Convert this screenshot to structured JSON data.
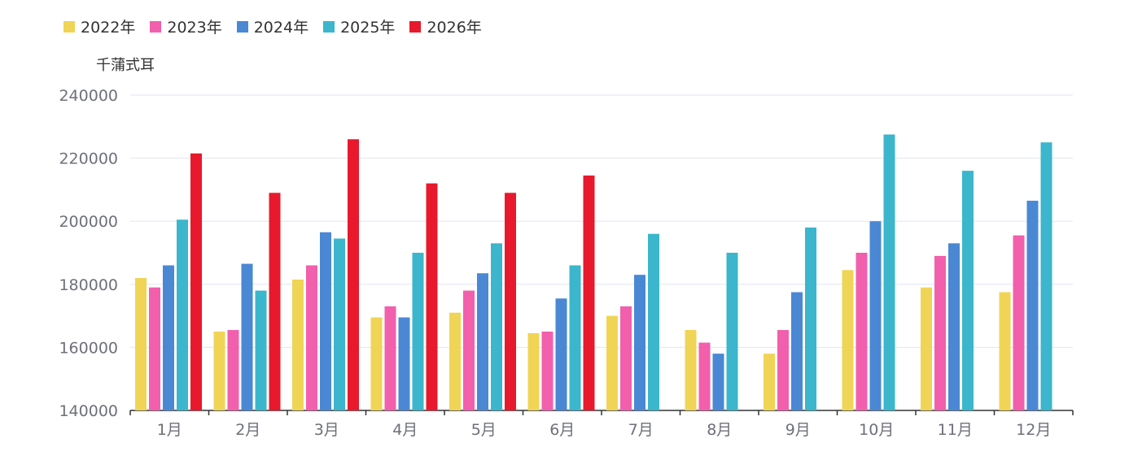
{
  "chart_data": {
    "type": "bar",
    "ylabel": "千蒲式耳",
    "categories": [
      "1月",
      "2月",
      "3月",
      "4月",
      "5月",
      "6月",
      "7月",
      "8月",
      "9月",
      "10月",
      "11月",
      "12月"
    ],
    "ylim": [
      140000,
      240000
    ],
    "yticks": [
      140000,
      160000,
      180000,
      200000,
      220000,
      240000
    ],
    "grid": true,
    "legend_position": "top-left",
    "series": [
      {
        "name": "2022年",
        "color": "#f0d456",
        "values": [
          182000,
          165000,
          181500,
          169500,
          171000,
          164500,
          170000,
          165500,
          158000,
          184500,
          179000,
          177500
        ]
      },
      {
        "name": "2023年",
        "color": "#f25fac",
        "values": [
          179000,
          165500,
          186000,
          173000,
          178000,
          165000,
          173000,
          161500,
          165500,
          190000,
          189000,
          195500
        ]
      },
      {
        "name": "2024年",
        "color": "#4a88d4",
        "values": [
          186000,
          186500,
          196500,
          169500,
          183500,
          175500,
          183000,
          158000,
          177500,
          200000,
          193000,
          206500
        ]
      },
      {
        "name": "2025年",
        "color": "#3bb6cc",
        "values": [
          200500,
          178000,
          194500,
          190000,
          193000,
          186000,
          196000,
          190000,
          198000,
          227500,
          216000,
          225000
        ]
      },
      {
        "name": "2026年",
        "color": "#e8192c",
        "values": [
          221500,
          209000,
          226000,
          212000,
          209000,
          214500,
          null,
          null,
          null,
          null,
          null,
          null
        ]
      }
    ]
  }
}
